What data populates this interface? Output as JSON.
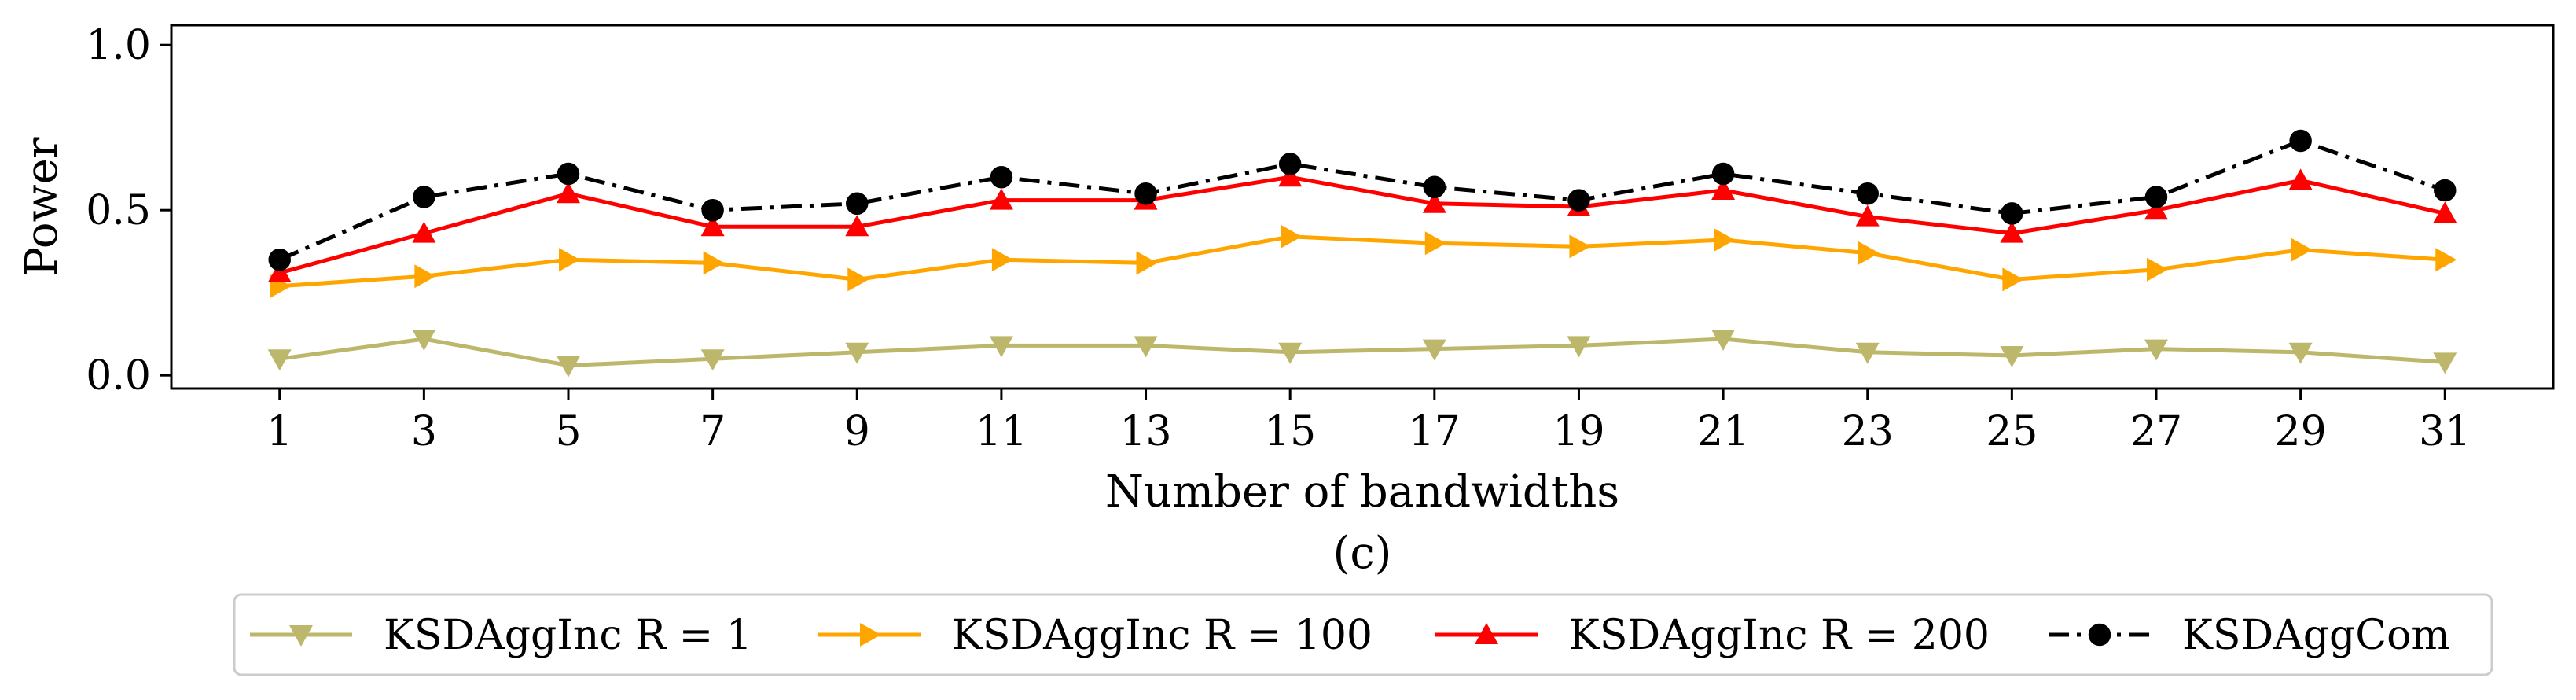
{
  "chart_data": {
    "type": "line",
    "subcaption": "(c)",
    "xlabel": "Number of bandwidths",
    "ylabel": "Power",
    "x": [
      1,
      3,
      5,
      7,
      9,
      11,
      13,
      15,
      17,
      19,
      21,
      23,
      25,
      27,
      29,
      31
    ],
    "x_ticks": [
      "1",
      "3",
      "5",
      "7",
      "9",
      "11",
      "13",
      "15",
      "17",
      "19",
      "21",
      "23",
      "25",
      "27",
      "29",
      "31"
    ],
    "y_ticks": [
      "0.0",
      "0.5",
      "1.0"
    ],
    "y_tick_values": [
      0.0,
      0.5,
      1.0
    ],
    "ylim": [
      -0.04,
      1.06
    ],
    "xlim": [
      -0.5,
      32.5
    ],
    "grid": false,
    "legend_position": "bottom-center",
    "series": [
      {
        "name": "KSDAggInc R = 1",
        "color": "#bdb76b",
        "marker": "triangle-down",
        "line_style": "solid",
        "values": [
          0.05,
          0.11,
          0.03,
          0.05,
          0.07,
          0.09,
          0.09,
          0.07,
          0.08,
          0.09,
          0.11,
          0.07,
          0.06,
          0.08,
          0.07,
          0.04
        ]
      },
      {
        "name": "KSDAggInc R = 100",
        "color": "#ffa500",
        "marker": "triangle-right",
        "line_style": "solid",
        "values": [
          0.27,
          0.3,
          0.35,
          0.34,
          0.29,
          0.35,
          0.34,
          0.42,
          0.4,
          0.39,
          0.41,
          0.37,
          0.29,
          0.32,
          0.38,
          0.35
        ]
      },
      {
        "name": "KSDAggInc R = 200",
        "color": "#ff0000",
        "marker": "triangle-up",
        "line_style": "solid",
        "values": [
          0.31,
          0.43,
          0.55,
          0.45,
          0.45,
          0.53,
          0.53,
          0.6,
          0.52,
          0.51,
          0.56,
          0.48,
          0.43,
          0.5,
          0.59,
          0.49
        ]
      },
      {
        "name": "KSDAggCom",
        "color": "#000000",
        "marker": "circle",
        "line_style": "dashdot",
        "values": [
          0.35,
          0.54,
          0.61,
          0.5,
          0.52,
          0.6,
          0.55,
          0.64,
          0.57,
          0.53,
          0.61,
          0.55,
          0.49,
          0.54,
          0.71,
          0.56
        ]
      }
    ]
  }
}
